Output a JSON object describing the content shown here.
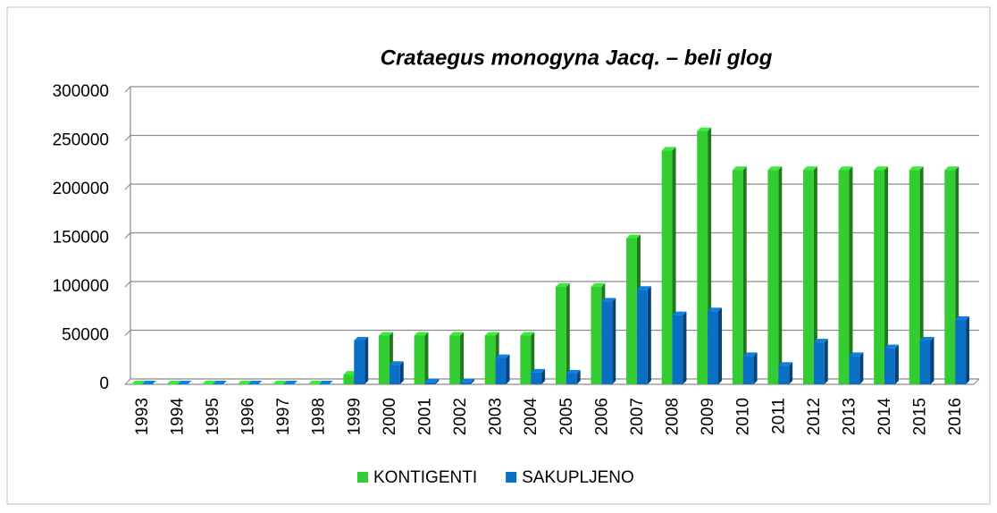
{
  "chart_data": {
    "type": "bar",
    "title": "Crataegus monogyna Jacq. – beli glog",
    "categories": [
      "1993",
      "1994",
      "1995",
      "1996",
      "1997",
      "1998",
      "1999",
      "2000",
      "2001",
      "2002",
      "2003",
      "2004",
      "2005",
      "2006",
      "2007",
      "2008",
      "2009",
      "2010",
      "2011",
      "2012",
      "2013",
      "2014",
      "2015",
      "2016"
    ],
    "series": [
      {
        "name": "KONTIGENTI",
        "color": "#33cc33",
        "values": [
          0,
          0,
          0,
          0,
          0,
          0,
          10000,
          50000,
          50000,
          50000,
          50000,
          50000,
          100000,
          100000,
          150000,
          240000,
          260000,
          220000,
          220000,
          220000,
          220000,
          220000,
          220000,
          220000
        ]
      },
      {
        "name": "SAKUPLJENO",
        "color": "#0b6fc4",
        "values": [
          0,
          0,
          0,
          0,
          0,
          0,
          45000,
          20000,
          2000,
          2000,
          27000,
          12000,
          11000,
          85000,
          97000,
          71000,
          75000,
          29000,
          19000,
          43000,
          29000,
          37000,
          45000,
          66000
        ]
      }
    ],
    "ylim": [
      0,
      300000
    ],
    "yticks": [
      0,
      50000,
      100000,
      150000,
      200000,
      250000,
      300000
    ],
    "grid": true,
    "legend": "bottom"
  }
}
